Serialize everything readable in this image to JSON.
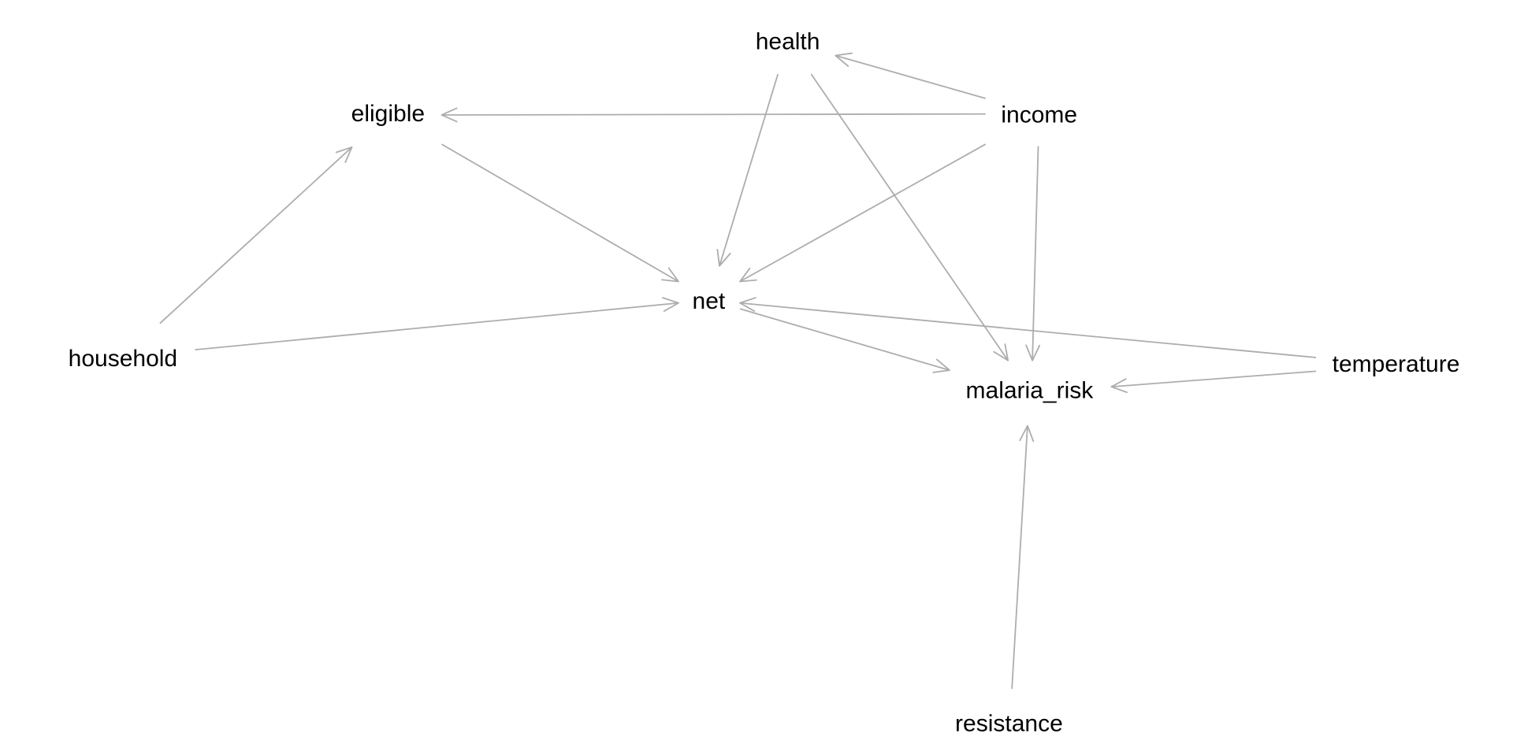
{
  "diagram": {
    "type": "directed-acyclic-graph",
    "edge_color": "#adadad",
    "label_color": "#000000",
    "background": "#ffffff",
    "nodes": [
      {
        "id": "health",
        "label": "health"
      },
      {
        "id": "eligible",
        "label": "eligible"
      },
      {
        "id": "income",
        "label": "income"
      },
      {
        "id": "net",
        "label": "net"
      },
      {
        "id": "household",
        "label": "household"
      },
      {
        "id": "temperature",
        "label": "temperature"
      },
      {
        "id": "malaria_risk",
        "label": "malaria_risk"
      },
      {
        "id": "resistance",
        "label": "resistance"
      }
    ],
    "edges": [
      {
        "from": "income",
        "to": "health"
      },
      {
        "from": "income",
        "to": "eligible"
      },
      {
        "from": "income",
        "to": "net"
      },
      {
        "from": "income",
        "to": "malaria_risk"
      },
      {
        "from": "health",
        "to": "net"
      },
      {
        "from": "health",
        "to": "malaria_risk"
      },
      {
        "from": "eligible",
        "to": "net"
      },
      {
        "from": "household",
        "to": "eligible"
      },
      {
        "from": "household",
        "to": "net"
      },
      {
        "from": "net",
        "to": "malaria_risk"
      },
      {
        "from": "temperature",
        "to": "net"
      },
      {
        "from": "temperature",
        "to": "malaria_risk"
      },
      {
        "from": "resistance",
        "to": "malaria_risk"
      }
    ]
  }
}
